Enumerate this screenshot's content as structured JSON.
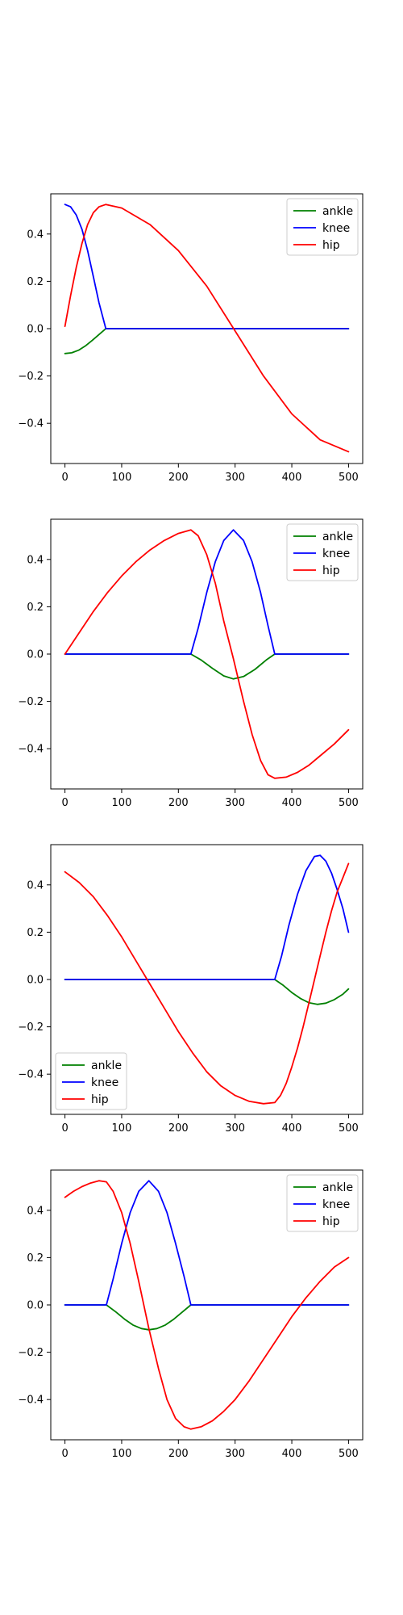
{
  "chart_data": [
    {
      "type": "line",
      "xlim": [
        -25,
        525
      ],
      "ylim": [
        -0.57,
        0.57
      ],
      "xticks": [
        0,
        100,
        200,
        300,
        400,
        500
      ],
      "yticks": [
        -0.4,
        -0.2,
        0.0,
        0.2,
        0.4
      ],
      "xtick_labels": [
        "0",
        "100",
        "200",
        "300",
        "400",
        "500"
      ],
      "ytick_labels": [
        "−0.4",
        "−0.2",
        "0.0",
        "0.2",
        "0.4"
      ],
      "legend": "upper-right",
      "grid": false,
      "series": [
        {
          "name": "ankle",
          "color": "#008000",
          "x": [
            0,
            12,
            24,
            36,
            48,
            60,
            72,
            150,
            300,
            500
          ],
          "y": [
            -0.105,
            -0.102,
            -0.091,
            -0.073,
            -0.05,
            -0.025,
            0,
            0,
            0,
            0
          ]
        },
        {
          "name": "knee",
          "color": "#0000ff",
          "x": [
            0,
            10,
            20,
            30,
            40,
            50,
            60,
            72,
            150,
            300,
            500
          ],
          "y": [
            0.525,
            0.515,
            0.48,
            0.42,
            0.33,
            0.22,
            0.11,
            0,
            0,
            0,
            0
          ]
        },
        {
          "name": "hip",
          "color": "#ff0000",
          "x": [
            0,
            10,
            20,
            30,
            40,
            50,
            60,
            72,
            100,
            150,
            200,
            250,
            300,
            350,
            400,
            450,
            500
          ],
          "y": [
            0.01,
            0.14,
            0.26,
            0.36,
            0.44,
            0.49,
            0.515,
            0.525,
            0.51,
            0.44,
            0.33,
            0.18,
            -0.01,
            -0.2,
            -0.36,
            -0.47,
            -0.52
          ]
        }
      ]
    },
    {
      "type": "line",
      "xlim": [
        -25,
        525
      ],
      "ylim": [
        -0.57,
        0.57
      ],
      "xticks": [
        0,
        100,
        200,
        300,
        400,
        500
      ],
      "yticks": [
        -0.4,
        -0.2,
        0.0,
        0.2,
        0.4
      ],
      "xtick_labels": [
        "0",
        "100",
        "200",
        "300",
        "400",
        "500"
      ],
      "ytick_labels": [
        "−0.4",
        "−0.2",
        "0.0",
        "0.2",
        "0.4"
      ],
      "legend": "upper-right",
      "grid": false,
      "series": [
        {
          "name": "ankle",
          "color": "#008000",
          "x": [
            0,
            100,
            222,
            240,
            260,
            280,
            297,
            315,
            335,
            355,
            370,
            420,
            500
          ],
          "y": [
            0,
            0,
            0,
            -0.025,
            -0.06,
            -0.092,
            -0.105,
            -0.095,
            -0.065,
            -0.025,
            0,
            0,
            0
          ]
        },
        {
          "name": "knee",
          "color": "#0000ff",
          "x": [
            0,
            100,
            222,
            235,
            250,
            265,
            280,
            297,
            315,
            330,
            345,
            358,
            370,
            420,
            500
          ],
          "y": [
            0,
            0,
            0,
            0.11,
            0.26,
            0.39,
            0.48,
            0.525,
            0.48,
            0.39,
            0.26,
            0.12,
            0,
            0,
            0
          ]
        },
        {
          "name": "hip",
          "color": "#ff0000",
          "x": [
            0,
            25,
            50,
            75,
            100,
            125,
            150,
            175,
            200,
            222,
            235,
            250,
            265,
            280,
            297,
            315,
            330,
            345,
            358,
            370,
            390,
            410,
            430,
            450,
            475,
            500
          ],
          "y": [
            0,
            0.09,
            0.18,
            0.26,
            0.33,
            0.39,
            0.44,
            0.48,
            0.51,
            0.525,
            0.5,
            0.42,
            0.3,
            0.14,
            -0.02,
            -0.2,
            -0.34,
            -0.45,
            -0.51,
            -0.525,
            -0.52,
            -0.5,
            -0.47,
            -0.43,
            -0.38,
            -0.32
          ]
        }
      ]
    },
    {
      "type": "line",
      "xlim": [
        -25,
        525
      ],
      "ylim": [
        -0.57,
        0.57
      ],
      "xticks": [
        0,
        100,
        200,
        300,
        400,
        500
      ],
      "yticks": [
        -0.4,
        -0.2,
        0.0,
        0.2,
        0.4
      ],
      "xtick_labels": [
        "0",
        "100",
        "200",
        "300",
        "400",
        "500"
      ],
      "ytick_labels": [
        "−0.4",
        "−0.2",
        "0.0",
        "0.2",
        "0.4"
      ],
      "legend": "lower-left",
      "grid": false,
      "series": [
        {
          "name": "ankle",
          "color": "#008000",
          "x": [
            0,
            200,
            370,
            385,
            400,
            415,
            430,
            445,
            460,
            475,
            490,
            500
          ],
          "y": [
            0,
            0,
            0,
            -0.025,
            -0.055,
            -0.08,
            -0.098,
            -0.105,
            -0.1,
            -0.085,
            -0.062,
            -0.04
          ]
        },
        {
          "name": "knee",
          "color": "#0000ff",
          "x": [
            0,
            200,
            370,
            382,
            395,
            410,
            425,
            440,
            450,
            460,
            470,
            480,
            490,
            500
          ],
          "y": [
            0,
            0,
            0,
            0.1,
            0.23,
            0.36,
            0.46,
            0.52,
            0.525,
            0.5,
            0.45,
            0.38,
            0.3,
            0.2
          ]
        },
        {
          "name": "hip",
          "color": "#ff0000",
          "x": [
            0,
            25,
            50,
            75,
            100,
            125,
            150,
            175,
            200,
            225,
            250,
            275,
            300,
            325,
            350,
            370,
            380,
            390,
            400,
            410,
            420,
            430,
            440,
            450,
            460,
            470,
            480,
            490,
            500
          ],
          "y": [
            0.455,
            0.41,
            0.35,
            0.27,
            0.18,
            0.08,
            -0.02,
            -0.12,
            -0.22,
            -0.31,
            -0.39,
            -0.45,
            -0.49,
            -0.515,
            -0.525,
            -0.52,
            -0.49,
            -0.44,
            -0.37,
            -0.29,
            -0.2,
            -0.1,
            0.0,
            0.1,
            0.2,
            0.29,
            0.37,
            0.43,
            0.49
          ]
        }
      ]
    },
    {
      "type": "line",
      "xlim": [
        -25,
        525
      ],
      "ylim": [
        -0.57,
        0.57
      ],
      "xticks": [
        0,
        100,
        200,
        300,
        400,
        500
      ],
      "yticks": [
        -0.4,
        -0.2,
        0.0,
        0.2,
        0.4
      ],
      "xtick_labels": [
        "0",
        "100",
        "200",
        "300",
        "400",
        "500"
      ],
      "ytick_labels": [
        "−0.4",
        "−0.2",
        "0.0",
        "0.2",
        "0.4"
      ],
      "legend": "upper-right",
      "grid": false,
      "series": [
        {
          "name": "ankle",
          "color": "#008000",
          "x": [
            0,
            50,
            73,
            90,
            105,
            120,
            135,
            148,
            162,
            177,
            192,
            207,
            222,
            300,
            500
          ],
          "y": [
            0,
            0,
            0,
            -0.03,
            -0.06,
            -0.085,
            -0.1,
            -0.105,
            -0.1,
            -0.085,
            -0.06,
            -0.03,
            0,
            0,
            0
          ]
        },
        {
          "name": "knee",
          "color": "#0000ff",
          "x": [
            0,
            50,
            73,
            85,
            100,
            115,
            130,
            148,
            165,
            180,
            195,
            210,
            222,
            300,
            500
          ],
          "y": [
            0,
            0,
            0,
            0.11,
            0.26,
            0.39,
            0.48,
            0.525,
            0.48,
            0.39,
            0.26,
            0.12,
            0,
            0,
            0
          ]
        },
        {
          "name": "hip",
          "color": "#ff0000",
          "x": [
            0,
            15,
            30,
            45,
            60,
            73,
            85,
            100,
            115,
            130,
            148,
            165,
            180,
            195,
            210,
            222,
            240,
            260,
            280,
            300,
            325,
            350,
            375,
            400,
            425,
            450,
            475,
            500
          ],
          "y": [
            0.455,
            0.48,
            0.5,
            0.515,
            0.525,
            0.52,
            0.48,
            0.39,
            0.26,
            0.1,
            -0.1,
            -0.27,
            -0.4,
            -0.48,
            -0.515,
            -0.525,
            -0.515,
            -0.49,
            -0.45,
            -0.4,
            -0.32,
            -0.23,
            -0.14,
            -0.05,
            0.03,
            0.1,
            0.16,
            0.2
          ]
        }
      ]
    }
  ]
}
